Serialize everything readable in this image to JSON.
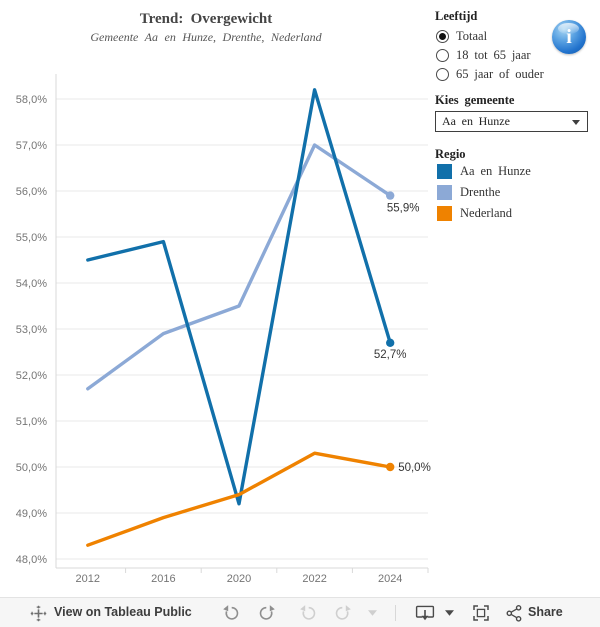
{
  "header": {
    "title": "Trend: Overgewicht",
    "subtitle": "Gemeente Aa en Hunze, Drenthe, Nederland"
  },
  "filters": {
    "leeftijd": {
      "label": "Leeftijd",
      "options": [
        {
          "label": "Totaal",
          "selected": true
        },
        {
          "label": "18 tot 65 jaar",
          "selected": false
        },
        {
          "label": "65 jaar of ouder",
          "selected": false
        }
      ]
    },
    "gemeente": {
      "label": "Kies gemeente",
      "selected_value": "Aa en Hunze"
    }
  },
  "info_button": {
    "icon": "info-icon",
    "glyph": "i"
  },
  "legend": {
    "title": "Regio",
    "items": [
      {
        "label": "Aa en Hunze",
        "color": "#1170aa"
      },
      {
        "label": "Drenthe",
        "color": "#8ca9d6"
      },
      {
        "label": "Nederland",
        "color": "#ef8200"
      }
    ]
  },
  "chart_data": {
    "type": "line",
    "categories": [
      "2012",
      "2016",
      "2020",
      "2022",
      "2024"
    ],
    "series": [
      {
        "name": "Aa en Hunze",
        "color": "#1170aa",
        "values": [
          54.5,
          54.9,
          49.2,
          58.2,
          52.7
        ],
        "end_label": "52,7%"
      },
      {
        "name": "Drenthe",
        "color": "#8ca9d6",
        "values": [
          51.7,
          52.9,
          53.5,
          57.0,
          55.9
        ],
        "end_label": "55,9%"
      },
      {
        "name": "Nederland",
        "color": "#ef8200",
        "values": [
          48.3,
          48.9,
          49.4,
          50.3,
          50.0
        ],
        "end_label": "50,0%"
      }
    ],
    "title": "Trend: Overgewicht",
    "subtitle": "Gemeente Aa en Hunze, Drenthe, Nederland",
    "xlabel": "",
    "ylabel": "",
    "ylim": [
      48,
      58.5
    ],
    "grid": "horizontal",
    "legend_position": "right",
    "y_ticks": [
      {
        "value": 48,
        "label": "48,0%"
      },
      {
        "value": 49,
        "label": "49,0%"
      },
      {
        "value": 50,
        "label": "50,0%"
      },
      {
        "value": 51,
        "label": "51,0%"
      },
      {
        "value": 52,
        "label": "52,0%"
      },
      {
        "value": 53,
        "label": "53,0%"
      },
      {
        "value": 54,
        "label": "54,0%"
      },
      {
        "value": 55,
        "label": "55,0%"
      },
      {
        "value": 56,
        "label": "56,0%"
      },
      {
        "value": 57,
        "label": "57,0%"
      },
      {
        "value": 58,
        "label": "58,0%"
      }
    ]
  },
  "toolbar": {
    "view_on_label": "View on Tableau Public",
    "share_label": "Share",
    "icons": [
      "tableau-logo-icon",
      "undo-icon",
      "redo-icon",
      "revert-icon",
      "refresh-icon",
      "caret-down-icon",
      "download-icon",
      "download-caret-icon",
      "fullscreen-icon",
      "share-icon"
    ]
  }
}
